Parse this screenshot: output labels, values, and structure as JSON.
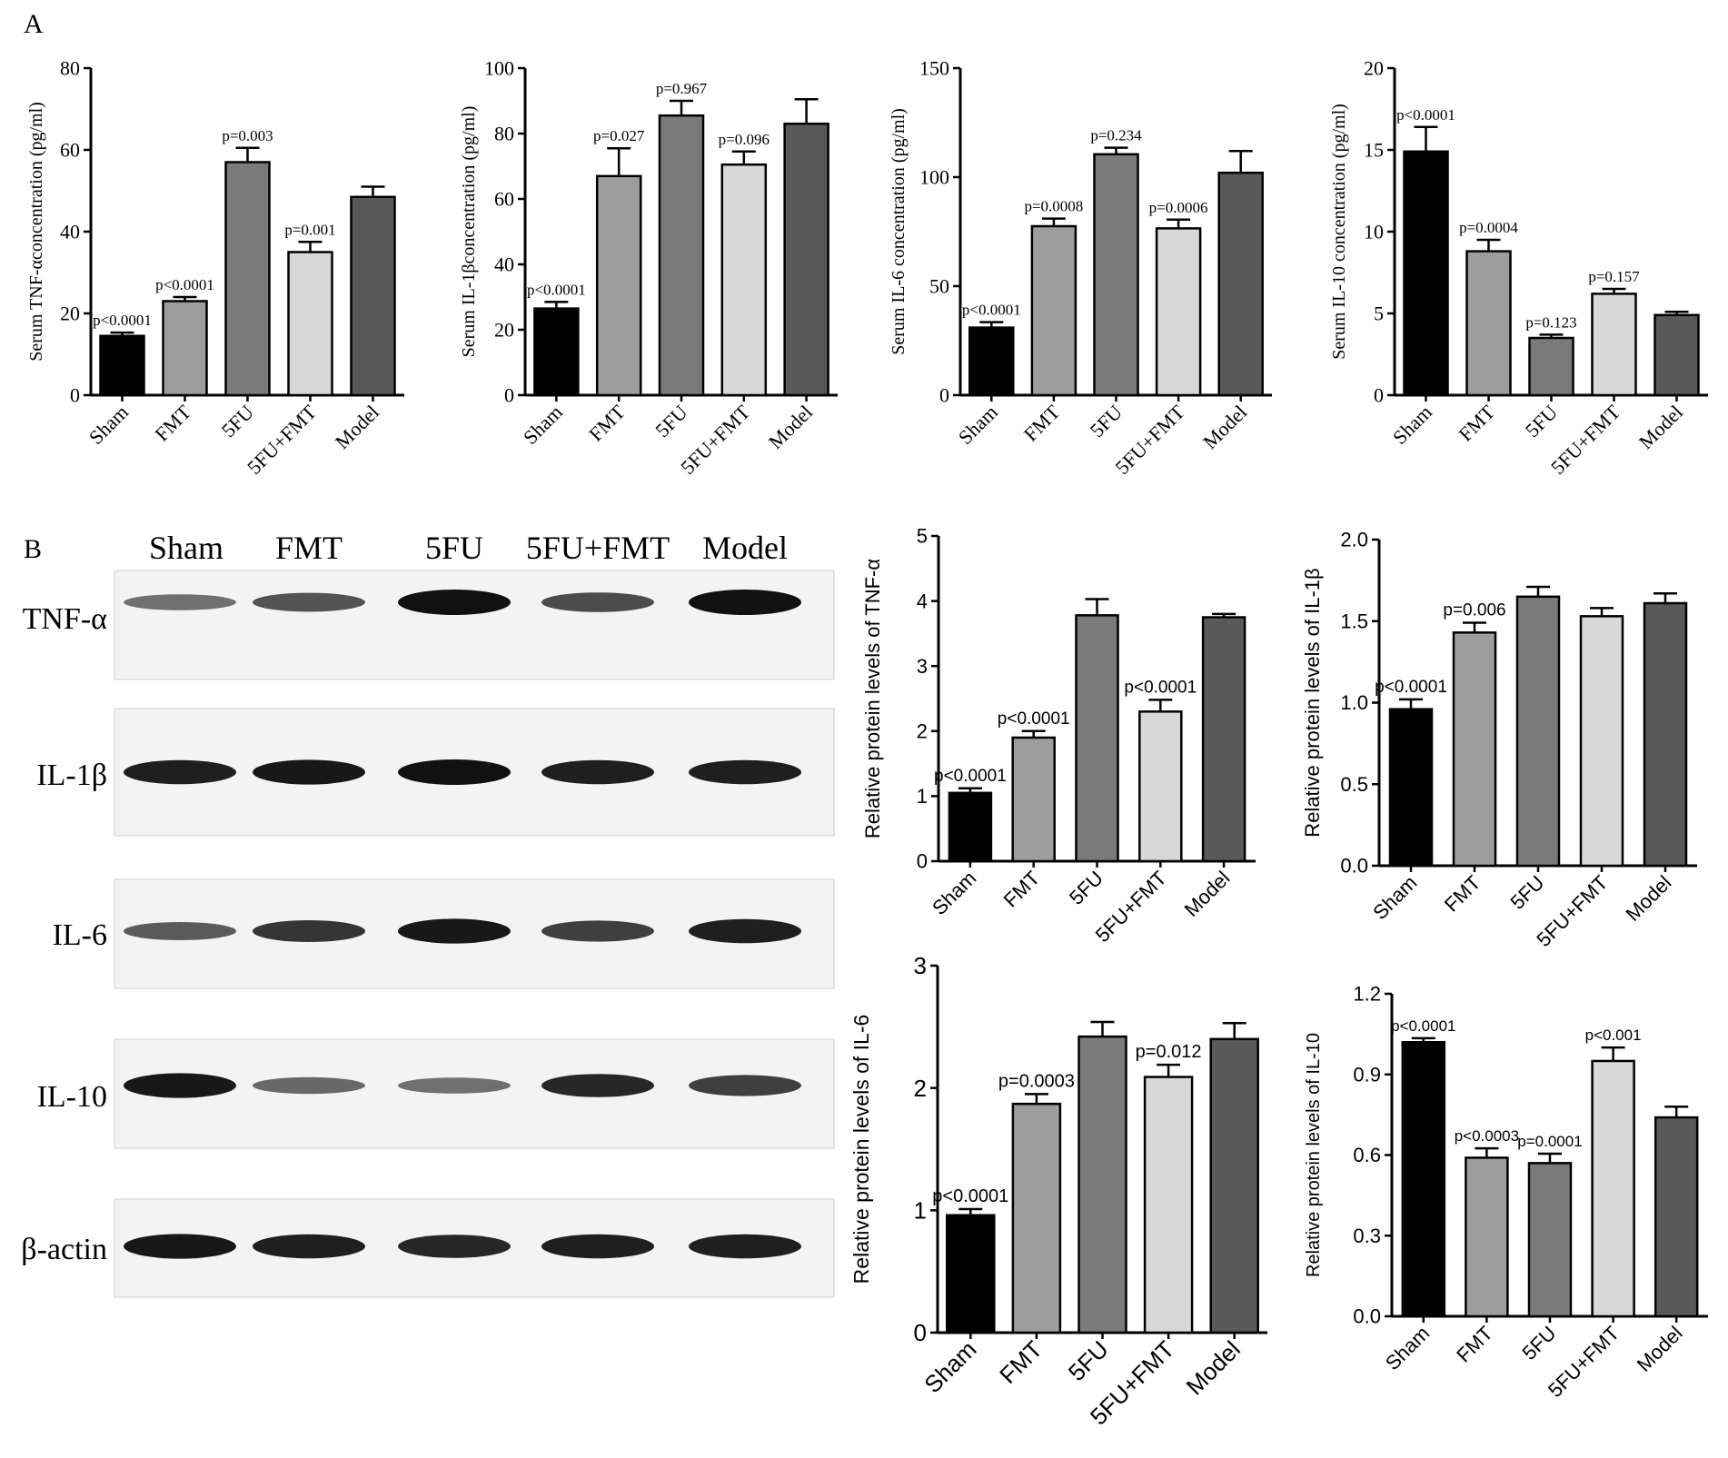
{
  "panels": {
    "a_label": "A",
    "b_label": "B"
  },
  "colors": {
    "sham": "#000000",
    "fmt": "#9d9d9d",
    "fu": "#7a7a7a",
    "fufmt": "#d8d8d8",
    "model": "#595959"
  },
  "blot": {
    "lanes": [
      "Sham",
      "FMT",
      "5FU",
      "5FU+FMT",
      "Model"
    ],
    "rows": [
      {
        "label": "TNF-α",
        "intensity": [
          0.35,
          0.55,
          1.0,
          0.6,
          1.0
        ]
      },
      {
        "label": "IL-1β",
        "intensity": [
          0.9,
          0.95,
          1.0,
          0.9,
          0.9
        ]
      },
      {
        "label": "IL-6",
        "intensity": [
          0.5,
          0.75,
          0.95,
          0.7,
          0.9
        ]
      },
      {
        "label": "IL-10",
        "intensity": [
          0.95,
          0.4,
          0.35,
          0.85,
          0.7
        ]
      },
      {
        "label": "β-actin",
        "intensity": [
          0.95,
          0.9,
          0.85,
          0.9,
          0.9
        ]
      }
    ]
  },
  "chart_data": [
    {
      "id": "a1",
      "type": "bar",
      "font": "serif",
      "categories": [
        "Sham",
        "FMT",
        "5FU",
        "5FU+FMT",
        "Model"
      ],
      "values": [
        14.5,
        23,
        57,
        35,
        48.5
      ],
      "errors": [
        0.8,
        1.0,
        3.5,
        2.5,
        2.5
      ],
      "ylabel": "Serum TNF-αconcentration (pg/ml)",
      "ylim": [
        0,
        80
      ],
      "yticks": [
        "0",
        "20",
        "40",
        "60",
        "80"
      ],
      "annotations": [
        "p<0.0001",
        "p<0.0001",
        "p=0.003",
        "p=0.001",
        ""
      ]
    },
    {
      "id": "a2",
      "type": "bar",
      "font": "serif",
      "categories": [
        "Sham",
        "FMT",
        "5FU",
        "5FU+FMT",
        "Model"
      ],
      "values": [
        26.5,
        67,
        85.5,
        70.5,
        83
      ],
      "errors": [
        2.0,
        8.5,
        4.5,
        4.0,
        7.5
      ],
      "ylabel": "Serum IL-1βconcentration (pg/ml)",
      "ylim": [
        0,
        100
      ],
      "yticks": [
        "0",
        "20",
        "40",
        "60",
        "80",
        "100"
      ],
      "annotations": [
        "p<0.0001",
        "p=0.027",
        "p=0.967",
        "p=0.096",
        ""
      ]
    },
    {
      "id": "a3",
      "type": "bar",
      "font": "serif",
      "categories": [
        "Sham",
        "FMT",
        "5FU",
        "5FU+FMT",
        "Model"
      ],
      "values": [
        31,
        77.5,
        110.5,
        76.5,
        102
      ],
      "errors": [
        2.5,
        3.5,
        3.0,
        4.0,
        10
      ],
      "ylabel": "Serum IL-6 concentration (pg/ml)",
      "ylim": [
        0,
        150
      ],
      "yticks": [
        "0",
        "50",
        "100",
        "150"
      ],
      "annotations": [
        "p<0.0001",
        "p=0.0008",
        "p=0.234",
        "p=0.0006",
        ""
      ]
    },
    {
      "id": "a4",
      "type": "bar",
      "font": "serif",
      "categories": [
        "Sham",
        "FMT",
        "5FU",
        "5FU+FMT",
        "Model"
      ],
      "values": [
        14.9,
        8.8,
        3.5,
        6.2,
        4.9
      ],
      "errors": [
        1.5,
        0.7,
        0.2,
        0.3,
        0.2
      ],
      "ylabel": "Serum IL-10 concentration (pg/ml)",
      "ylim": [
        0,
        20
      ],
      "yticks": [
        "0",
        "5",
        "10",
        "15",
        "20"
      ],
      "annotations": [
        "p<0.0001",
        "p=0.0004",
        "p=0.123",
        "p=0.157",
        ""
      ]
    },
    {
      "id": "b1",
      "type": "bar",
      "font": "sans",
      "categories": [
        "Sham",
        "FMT",
        "5FU",
        "5FU+FMT",
        "Model"
      ],
      "values": [
        1.05,
        1.9,
        3.78,
        2.3,
        3.75
      ],
      "errors": [
        0.07,
        0.1,
        0.25,
        0.18,
        0.05
      ],
      "ylabel": "Relative protein levels of TNF-α",
      "ylim": [
        0,
        5
      ],
      "yticks": [
        "0",
        "1",
        "2",
        "3",
        "4",
        "5"
      ],
      "annotations": [
        "p<0.0001",
        "p<0.0001",
        "",
        "p<0.0001",
        ""
      ]
    },
    {
      "id": "b2",
      "type": "bar",
      "font": "sans",
      "categories": [
        "Sham",
        "FMT",
        "5FU",
        "5FU+FMT",
        "Model"
      ],
      "values": [
        0.96,
        1.43,
        1.65,
        1.53,
        1.61
      ],
      "errors": [
        0.06,
        0.06,
        0.06,
        0.05,
        0.06
      ],
      "ylabel": "Relative protein levels of IL-1β",
      "ylim": [
        0,
        2
      ],
      "yticks": [
        "0.0",
        "0.5",
        "1.0",
        "1.5",
        "2.0"
      ],
      "annotations": [
        "p<0.0001",
        "p=0.006",
        "",
        "",
        ""
      ]
    },
    {
      "id": "b3",
      "type": "bar",
      "font": "sans",
      "categories": [
        "Sham",
        "FMT",
        "5FU",
        "5FU+FMT",
        "Model"
      ],
      "values": [
        0.96,
        1.87,
        2.42,
        2.09,
        2.4
      ],
      "errors": [
        0.05,
        0.08,
        0.12,
        0.1,
        0.13
      ],
      "ylabel": "Relative protein levels of IL-6",
      "ylim": [
        0,
        3
      ],
      "yticks": [
        "0",
        "1",
        "2",
        "3"
      ],
      "annotations": [
        "p<0.0001",
        "p=0.0003",
        "",
        "p=0.012",
        ""
      ]
    },
    {
      "id": "b4",
      "type": "bar",
      "font": "sans",
      "categories": [
        "Sham",
        "FMT",
        "5FU",
        "5FU+FMT",
        "Model"
      ],
      "values": [
        1.02,
        0.59,
        0.57,
        0.95,
        0.74
      ],
      "errors": [
        0.015,
        0.035,
        0.035,
        0.05,
        0.04
      ],
      "ylabel": "Relative protein levels of IL-10",
      "ylim": [
        0,
        1.2
      ],
      "yticks": [
        "0.0",
        "0.3",
        "0.6",
        "0.9",
        "1.2"
      ],
      "annotations": [
        "p<0.0001",
        "p<0.0003",
        "p=0.0001",
        "p<0.001",
        ""
      ]
    }
  ]
}
